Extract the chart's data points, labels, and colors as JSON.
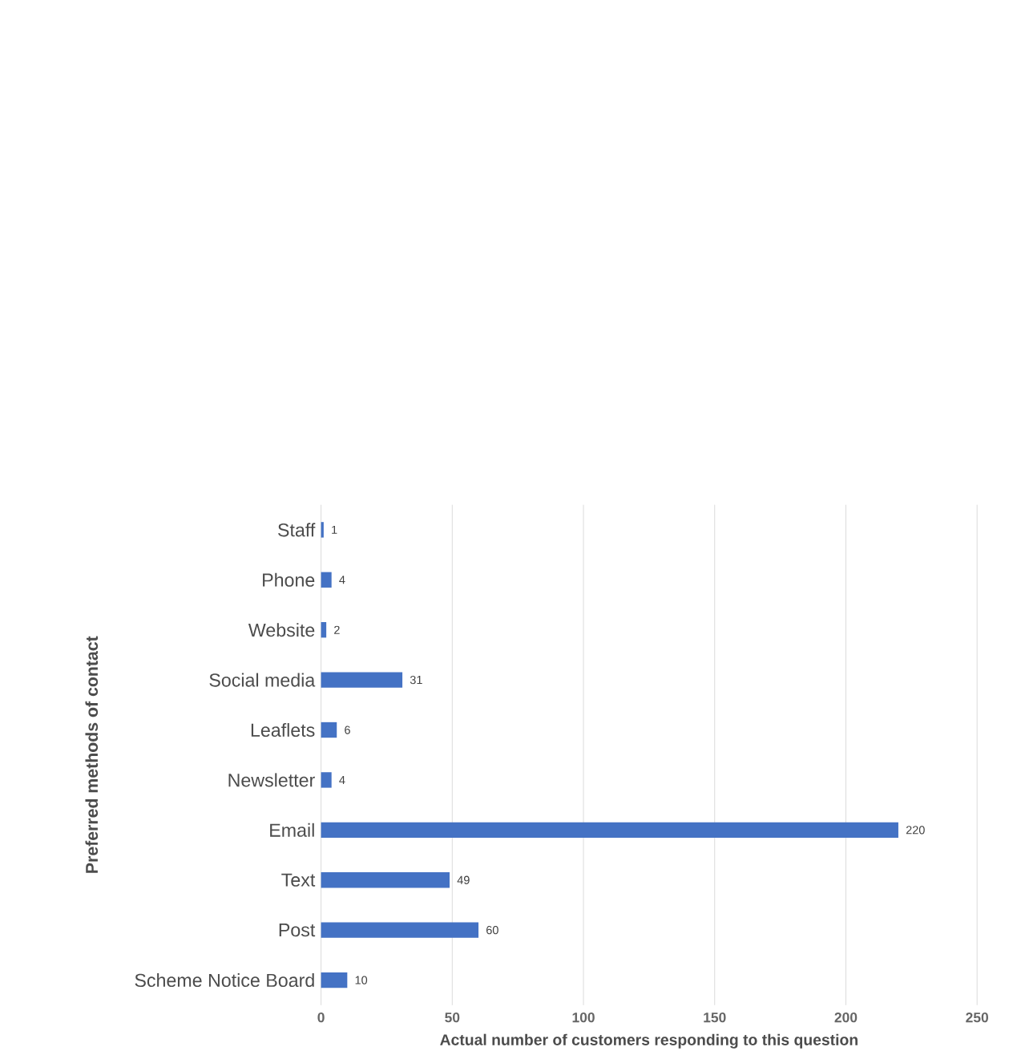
{
  "chart_data": {
    "type": "bar",
    "orientation": "horizontal",
    "xlabel": "Actual number of customers responding to this question",
    "ylabel": "Preferred methods of contact",
    "categories": [
      "Staff",
      "Phone",
      "Website",
      "Social media",
      "Leaflets",
      "Newsletter",
      "Email",
      "Text",
      "Post",
      "Scheme Notice Board"
    ],
    "values": [
      1,
      4,
      2,
      31,
      6,
      4,
      220,
      49,
      60,
      10
    ],
    "color": "#4472c4",
    "xlim": [
      0,
      250
    ],
    "xticks": [
      0,
      50,
      100,
      150,
      200,
      250
    ],
    "grid": "x",
    "data_labels": true
  }
}
